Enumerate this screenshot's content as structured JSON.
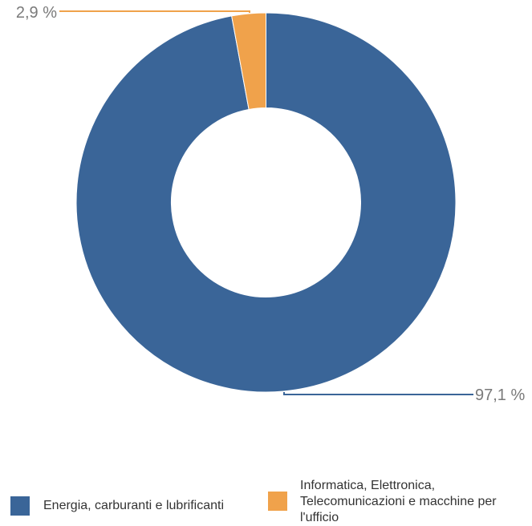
{
  "chart_data": {
    "type": "pie",
    "variant": "donut",
    "title": "",
    "categories": [
      "Energia, carburanti e lubrificanti",
      "Informatica, Elettronica, Telecomunicazioni e macchine per l'ufficio"
    ],
    "values": [
      97.1,
      2.9
    ],
    "value_labels": [
      "97,1 %",
      "2,9 %"
    ],
    "colors": [
      "#3a6598",
      "#f0a24b"
    ],
    "legend_position": "bottom"
  }
}
